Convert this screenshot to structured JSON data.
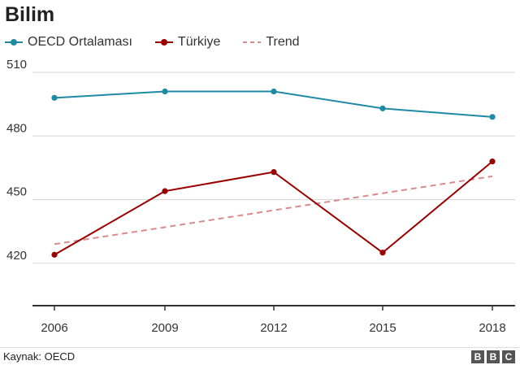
{
  "chart_data": {
    "type": "line",
    "title": "Bilim",
    "categories": [
      "2006",
      "2009",
      "2012",
      "2015",
      "2018"
    ],
    "series": [
      {
        "name": "OECD Ortalaması",
        "color": "#1f8aa6",
        "style": "solid",
        "markers": true,
        "values": [
          498,
          501,
          501,
          493,
          489
        ]
      },
      {
        "name": "Türkiye",
        "color": "#990000",
        "style": "solid",
        "markers": true,
        "values": [
          424,
          454,
          463,
          425,
          468
        ]
      },
      {
        "name": "Trend",
        "color": "#d98a8a",
        "style": "dashed",
        "markers": false,
        "values": [
          429,
          437,
          445,
          453,
          461
        ]
      }
    ],
    "ylim": [
      400,
      515
    ],
    "yticks": [
      "510",
      "480",
      "450",
      "420"
    ],
    "grid": true,
    "legend_position": "top-left"
  },
  "footer": {
    "source": "Kaynak: OECD",
    "logo": [
      "B",
      "B",
      "C"
    ]
  }
}
